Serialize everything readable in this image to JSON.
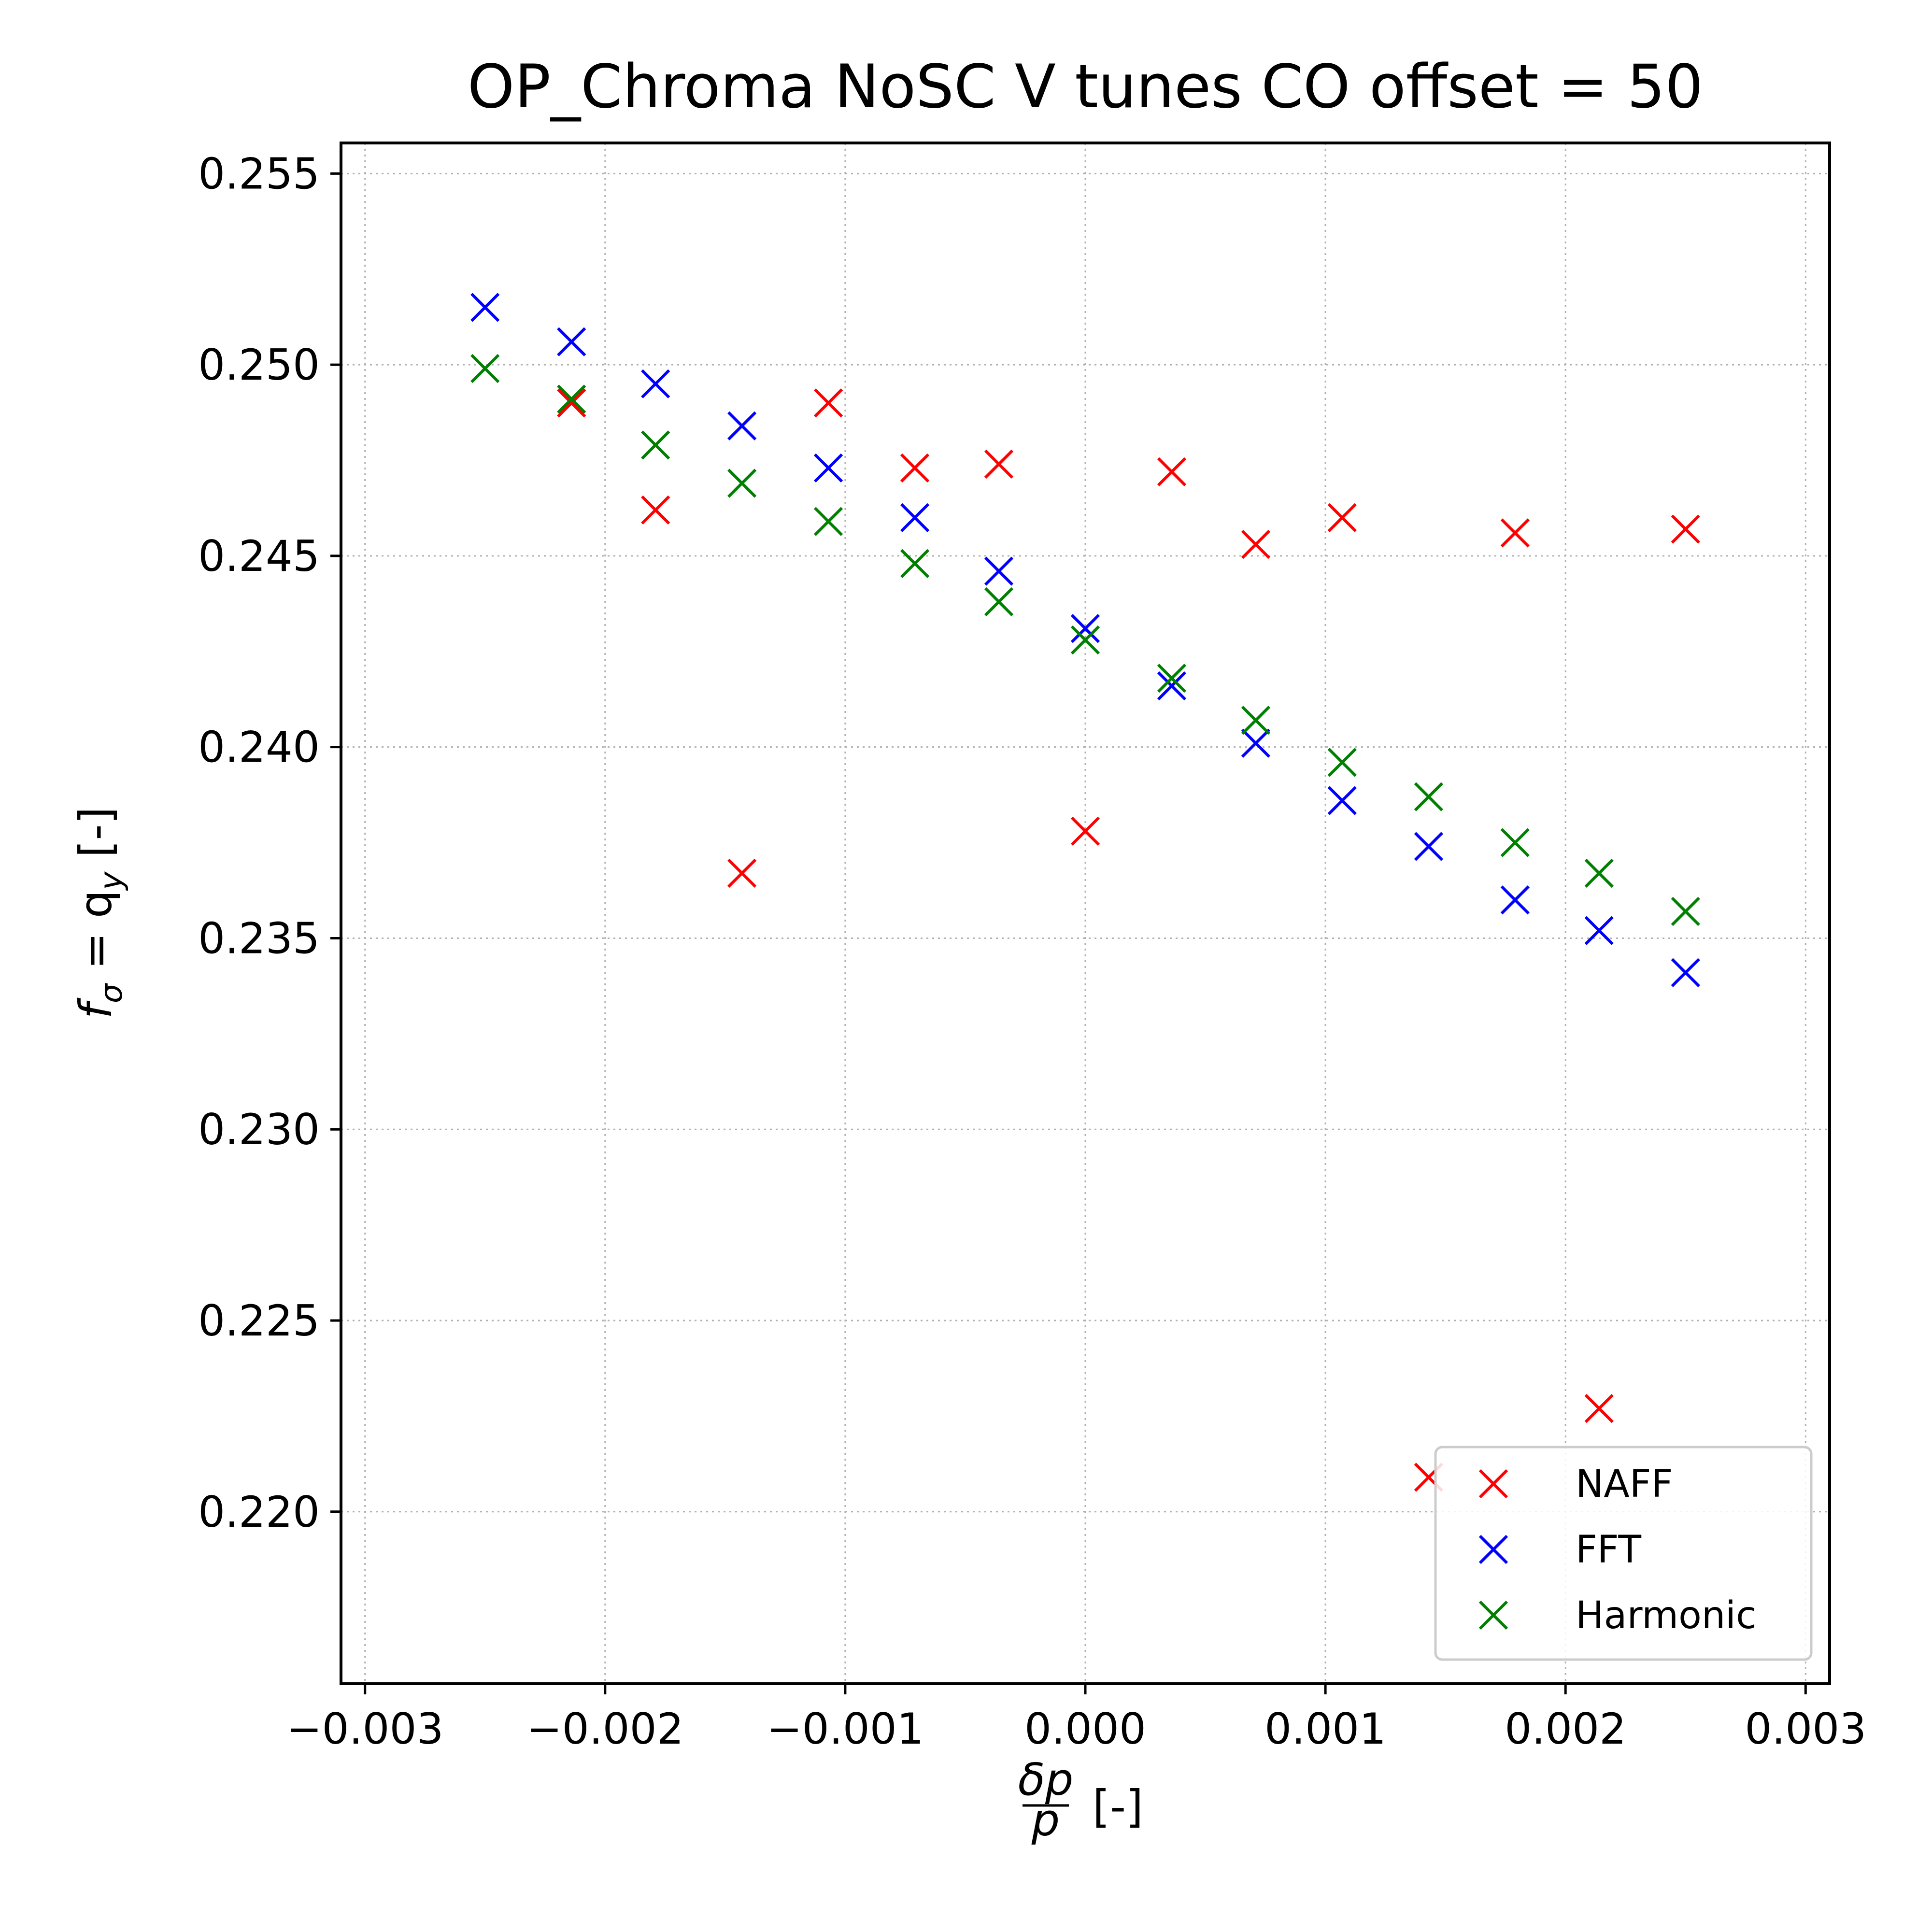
{
  "chart_data": {
    "type": "scatter",
    "title": "OP_Chroma NoSC V tunes CO offset = 50",
    "xlabel": {
      "numerator": "δp",
      "denominator": "p",
      "suffix": "[-]"
    },
    "ylabel": {
      "prefix": "f",
      "sub1": "σ",
      "mid": " = q",
      "sub2": "y",
      "suffix": " [-]"
    },
    "xlim": [
      -0.0031,
      0.0031
    ],
    "ylim": [
      0.2155,
      0.2558
    ],
    "xticks": [
      -0.003,
      -0.002,
      -0.001,
      0.0,
      0.001,
      0.002,
      0.003
    ],
    "xtick_labels": [
      "−0.003",
      "−0.002",
      "−0.001",
      "0.000",
      "0.001",
      "0.002",
      "0.003"
    ],
    "yticks": [
      0.22,
      0.225,
      0.23,
      0.235,
      0.24,
      0.245,
      0.25,
      0.255
    ],
    "ytick_labels": [
      "0.220",
      "0.225",
      "0.230",
      "0.235",
      "0.240",
      "0.245",
      "0.250",
      "0.255"
    ],
    "grid": true,
    "legend_position": "lower-right",
    "marker": "x",
    "series": [
      {
        "name": "NAFF",
        "color": "#ff0000",
        "x": [
          -0.00214,
          -0.00179,
          -0.00143,
          -0.00107,
          -0.00071,
          -0.00036,
          0.0,
          0.00036,
          0.00071,
          0.00107,
          0.00143,
          0.00179,
          0.00214,
          0.0025
        ],
        "y": [
          0.249,
          0.2462,
          0.2367,
          0.249,
          0.2473,
          0.2474,
          0.2378,
          0.2472,
          0.2453,
          0.246,
          0.2209,
          0.2456,
          0.2227,
          0.2457
        ]
      },
      {
        "name": "FFT",
        "color": "#0000ff",
        "x": [
          -0.0025,
          -0.00214,
          -0.00179,
          -0.00143,
          -0.00107,
          -0.00071,
          -0.00036,
          0.0,
          0.00036,
          0.00071,
          0.00107,
          0.00143,
          0.00179,
          0.00214,
          0.0025
        ],
        "y": [
          0.2515,
          0.2506,
          0.2495,
          0.2484,
          0.2473,
          0.246,
          0.2446,
          0.2431,
          0.2416,
          0.2401,
          0.2386,
          0.2374,
          0.236,
          0.2352,
          0.2341
        ]
      },
      {
        "name": "Harmonic",
        "color": "#008000",
        "x": [
          -0.0025,
          -0.00214,
          -0.00179,
          -0.00143,
          -0.00107,
          -0.00071,
          -0.00036,
          0.0,
          0.00036,
          0.00071,
          0.00107,
          0.00143,
          0.00179,
          0.00214,
          0.0025
        ],
        "y": [
          0.2499,
          0.2491,
          0.2479,
          0.2469,
          0.2459,
          0.2448,
          0.2438,
          0.2428,
          0.2418,
          0.2407,
          0.2396,
          0.2387,
          0.2375,
          0.2367,
          0.2357
        ]
      }
    ]
  }
}
